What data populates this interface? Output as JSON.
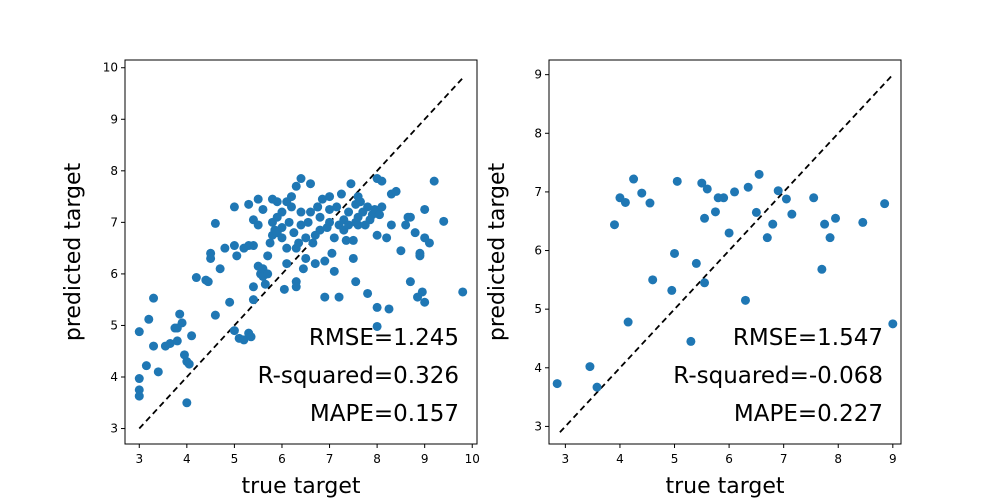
{
  "chart_data": [
    {
      "type": "scatter",
      "title": "",
      "xlabel": "true target",
      "ylabel": "predicted target",
      "xlim": [
        2.7,
        10.1
      ],
      "ylim": [
        2.7,
        10.15
      ],
      "xticks": [
        3,
        4,
        5,
        6,
        7,
        8,
        9,
        10
      ],
      "yticks": [
        3,
        4,
        5,
        6,
        7,
        8,
        9,
        10
      ],
      "grid": false,
      "point_color": "#1f77b4",
      "reference_line": {
        "style": "dashed",
        "color": "#000000",
        "x": [
          3.0,
          9.8
        ],
        "y": [
          3.0,
          9.8
        ]
      },
      "annotations": [
        "RMSE=1.245",
        "R-squared=0.326",
        "MAPE=0.157"
      ],
      "points": [
        [
          3.0,
          4.88
        ],
        [
          3.2,
          5.12
        ],
        [
          3.3,
          5.53
        ],
        [
          3.0,
          3.97
        ],
        [
          3.0,
          3.75
        ],
        [
          3.0,
          3.63
        ],
        [
          3.15,
          4.22
        ],
        [
          3.3,
          4.6
        ],
        [
          3.4,
          4.1
        ],
        [
          3.55,
          4.6
        ],
        [
          3.65,
          4.65
        ],
        [
          3.75,
          4.95
        ],
        [
          3.8,
          4.7
        ],
        [
          3.85,
          5.22
        ],
        [
          3.9,
          5.05
        ],
        [
          3.95,
          4.43
        ],
        [
          4.0,
          4.3
        ],
        [
          4.05,
          4.25
        ],
        [
          4.1,
          4.8
        ],
        [
          4.0,
          3.5
        ],
        [
          3.8,
          4.95
        ],
        [
          4.2,
          5.93
        ],
        [
          4.4,
          5.88
        ],
        [
          4.45,
          5.85
        ],
        [
          4.5,
          6.3
        ],
        [
          4.5,
          6.4
        ],
        [
          4.6,
          5.2
        ],
        [
          4.7,
          6.1
        ],
        [
          4.6,
          6.98
        ],
        [
          4.8,
          6.5
        ],
        [
          4.9,
          5.45
        ],
        [
          5.0,
          4.9
        ],
        [
          5.0,
          6.55
        ],
        [
          5.05,
          6.35
        ],
        [
          5.1,
          4.75
        ],
        [
          5.2,
          4.72
        ],
        [
          5.3,
          4.85
        ],
        [
          5.35,
          4.78
        ],
        [
          5.4,
          5.5
        ],
        [
          5.4,
          5.75
        ],
        [
          5.2,
          6.5
        ],
        [
          5.3,
          6.55
        ],
        [
          5.4,
          6.55
        ],
        [
          5.0,
          7.3
        ],
        [
          5.3,
          7.35
        ],
        [
          5.4,
          7.05
        ],
        [
          5.5,
          6.95
        ],
        [
          5.5,
          6.15
        ],
        [
          5.55,
          6.0
        ],
        [
          5.6,
          5.95
        ],
        [
          5.6,
          6.1
        ],
        [
          5.65,
          5.8
        ],
        [
          5.7,
          6.0
        ],
        [
          5.7,
          6.35
        ],
        [
          5.75,
          6.6
        ],
        [
          5.8,
          6.75
        ],
        [
          5.8,
          7.0
        ],
        [
          5.5,
          7.45
        ],
        [
          5.6,
          7.25
        ],
        [
          5.8,
          7.45
        ],
        [
          5.85,
          6.85
        ],
        [
          5.9,
          7.1
        ],
        [
          5.9,
          6.8
        ],
        [
          6.0,
          6.7
        ],
        [
          6.0,
          6.9
        ],
        [
          6.0,
          7.2
        ],
        [
          6.05,
          5.7
        ],
        [
          6.1,
          6.2
        ],
        [
          6.1,
          6.5
        ],
        [
          6.15,
          7.0
        ],
        [
          6.2,
          7.3
        ],
        [
          6.2,
          7.5
        ],
        [
          6.25,
          6.8
        ],
        [
          6.3,
          5.85
        ],
        [
          6.3,
          6.5
        ],
        [
          6.3,
          5.75
        ],
        [
          6.35,
          6.6
        ],
        [
          6.4,
          6.95
        ],
        [
          6.4,
          7.2
        ],
        [
          6.4,
          7.85
        ],
        [
          6.45,
          6.1
        ],
        [
          6.5,
          6.3
        ],
        [
          6.5,
          6.7
        ],
        [
          6.55,
          7.0
        ],
        [
          6.6,
          7.2
        ],
        [
          6.6,
          7.75
        ],
        [
          6.65,
          6.6
        ],
        [
          6.7,
          6.2
        ],
        [
          6.7,
          6.75
        ],
        [
          6.75,
          7.3
        ],
        [
          6.8,
          6.85
        ],
        [
          6.8,
          7.1
        ],
        [
          6.85,
          7.45
        ],
        [
          6.9,
          5.55
        ],
        [
          6.9,
          6.25
        ],
        [
          6.95,
          6.9
        ],
        [
          7.0,
          7.0
        ],
        [
          7.0,
          7.25
        ],
        [
          7.05,
          6.4
        ],
        [
          7.1,
          6.05
        ],
        [
          7.1,
          6.7
        ],
        [
          7.15,
          7.3
        ],
        [
          7.2,
          5.55
        ],
        [
          7.2,
          6.95
        ],
        [
          7.25,
          7.55
        ],
        [
          7.3,
          6.85
        ],
        [
          7.3,
          7.05
        ],
        [
          7.35,
          6.65
        ],
        [
          7.4,
          6.95
        ],
        [
          7.4,
          7.2
        ],
        [
          7.45,
          7.75
        ],
        [
          7.5,
          6.65
        ],
        [
          7.5,
          6.3
        ],
        [
          7.55,
          7.0
        ],
        [
          7.55,
          7.35
        ],
        [
          7.55,
          5.85
        ],
        [
          7.6,
          6.95
        ],
        [
          7.6,
          7.1
        ],
        [
          7.65,
          7.4
        ],
        [
          7.7,
          7.2
        ],
        [
          7.75,
          6.95
        ],
        [
          7.8,
          5.62
        ],
        [
          7.8,
          7.3
        ],
        [
          7.85,
          7.05
        ],
        [
          7.9,
          7.15
        ],
        [
          7.95,
          7.25
        ],
        [
          8.0,
          5.35
        ],
        [
          8.0,
          6.75
        ],
        [
          8.0,
          7.85
        ],
        [
          8.0,
          4.98
        ],
        [
          8.05,
          7.15
        ],
        [
          8.1,
          7.3
        ],
        [
          8.2,
          6.7
        ],
        [
          8.25,
          5.32
        ],
        [
          8.3,
          6.95
        ],
        [
          8.3,
          7.55
        ],
        [
          8.4,
          7.6
        ],
        [
          8.5,
          6.45
        ],
        [
          8.6,
          6.95
        ],
        [
          8.65,
          7.1
        ],
        [
          8.7,
          5.85
        ],
        [
          8.8,
          6.8
        ],
        [
          8.85,
          5.55
        ],
        [
          8.9,
          6.35
        ],
        [
          8.95,
          5.65
        ],
        [
          9.0,
          6.7
        ],
        [
          9.0,
          7.25
        ],
        [
          9.0,
          5.45
        ],
        [
          9.1,
          6.6
        ],
        [
          9.2,
          7.8
        ],
        [
          9.4,
          7.02
        ],
        [
          9.8,
          5.65
        ],
        [
          8.9,
          6.4
        ],
        [
          8.1,
          7.8
        ],
        [
          7.0,
          7.5
        ],
        [
          6.1,
          7.4
        ],
        [
          6.3,
          7.7
        ],
        [
          5.9,
          7.4
        ],
        [
          7.6,
          7.5
        ],
        [
          8.7,
          7.1
        ],
        [
          6.75,
          7.3
        ]
      ]
    },
    {
      "type": "scatter",
      "title": "",
      "xlabel": "true target",
      "ylabel": "predicted target",
      "xlim": [
        2.7,
        9.15
      ],
      "ylim": [
        2.7,
        9.25
      ],
      "xticks": [
        3,
        4,
        5,
        6,
        7,
        8,
        9
      ],
      "yticks": [
        3,
        4,
        5,
        6,
        7,
        8,
        9
      ],
      "grid": false,
      "point_color": "#1f77b4",
      "reference_line": {
        "style": "dashed",
        "color": "#000000",
        "x": [
          2.9,
          9.0
        ],
        "y": [
          2.9,
          9.0
        ]
      },
      "annotations": [
        "RMSE=1.547",
        "R-squared=-0.068",
        "MAPE=0.227"
      ],
      "points": [
        [
          2.85,
          3.73
        ],
        [
          3.45,
          4.02
        ],
        [
          3.58,
          3.67
        ],
        [
          3.9,
          6.44
        ],
        [
          4.0,
          6.9
        ],
        [
          4.1,
          6.82
        ],
        [
          4.15,
          4.78
        ],
        [
          4.25,
          7.22
        ],
        [
          4.4,
          6.98
        ],
        [
          4.55,
          6.81
        ],
        [
          4.6,
          5.5
        ],
        [
          4.95,
          5.32
        ],
        [
          5.0,
          5.95
        ],
        [
          5.05,
          7.18
        ],
        [
          5.3,
          4.45
        ],
        [
          5.4,
          5.78
        ],
        [
          5.5,
          7.15
        ],
        [
          5.55,
          6.55
        ],
        [
          5.55,
          5.45
        ],
        [
          5.6,
          7.05
        ],
        [
          5.75,
          6.66
        ],
        [
          5.8,
          6.9
        ],
        [
          5.9,
          6.9
        ],
        [
          6.0,
          6.3
        ],
        [
          6.1,
          7.0
        ],
        [
          6.3,
          5.15
        ],
        [
          6.35,
          7.08
        ],
        [
          6.5,
          6.65
        ],
        [
          6.55,
          7.3
        ],
        [
          6.7,
          6.22
        ],
        [
          6.8,
          6.45
        ],
        [
          6.9,
          7.02
        ],
        [
          7.05,
          6.88
        ],
        [
          7.15,
          6.62
        ],
        [
          7.55,
          6.9
        ],
        [
          7.7,
          5.68
        ],
        [
          7.75,
          6.45
        ],
        [
          7.85,
          6.22
        ],
        [
          7.95,
          6.55
        ],
        [
          8.45,
          6.48
        ],
        [
          8.85,
          6.8
        ],
        [
          9.0,
          4.75
        ]
      ]
    }
  ]
}
